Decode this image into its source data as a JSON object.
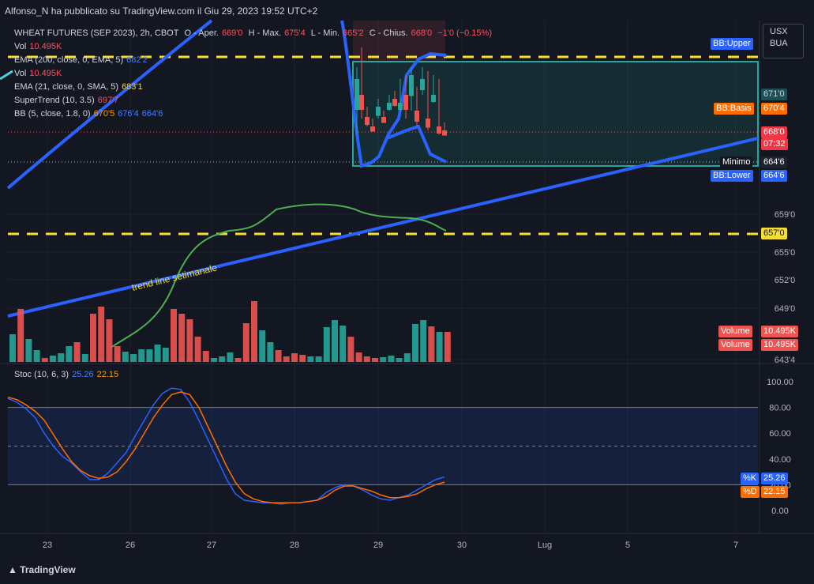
{
  "header": {
    "publisher_line": "Alfonso_N ha pubblicato su TradingView.com il Giu 29, 2023 19:52 UTC+2"
  },
  "legend": {
    "main": {
      "symbol": "WHEAT FUTURES (SEP 2023), 2h, CBOT",
      "o_label": "O - Aper.",
      "o": "669'0",
      "h_label": "H - Max.",
      "h": "675'4",
      "l_label": "L - Min.",
      "l": "665'2",
      "c_label": "C - Chius.",
      "c": "668'0",
      "chg": "−1'0 (−0.15%)"
    },
    "vol1": {
      "label": "Vol",
      "value": "10.495K"
    },
    "ema200": {
      "label": "EMA (200, close, 0, EMA, 5)",
      "value": "682'2"
    },
    "vol2": {
      "label": "Vol",
      "value": "10.495K"
    },
    "ema21": {
      "label": "EMA (21, close, 0, SMA, 5)",
      "value": "683'1"
    },
    "supertrend": {
      "label": "SuperTrend (10, 3.5)",
      "value": "697'7"
    },
    "bb": {
      "label": "BB (5, close, 1.8, 0)",
      "basis": "670'5",
      "upper": "676'4",
      "lower": "664'6"
    }
  },
  "currency": {
    "line1": "USX",
    "line2": "BUA"
  },
  "price_axis": {
    "ticks": [
      "659'0",
      "655'0",
      "652'0",
      "649'0",
      "643'4"
    ],
    "tags": {
      "bb_upper_label": "BB:Upper",
      "bb_basis_label": "BB:Basis",
      "bb_basis": "670'4",
      "val_671": "671'0",
      "last": "668'0",
      "countdown": "07:32",
      "minimo_label": "Minimo",
      "minimo": "664'6",
      "bb_lower_label": "BB:Lower",
      "bb_lower": "664'6",
      "level_657": "657'0",
      "vol_label": "Volume",
      "vol_value": "10.495K"
    }
  },
  "annotation": {
    "trendline_text": "trend line setimanale"
  },
  "stoch": {
    "legend_label": "Stoc (10, 6, 3)",
    "k_value": "25.26",
    "d_value": "22.15",
    "axis_ticks": [
      "100.00",
      "80.00",
      "60.00",
      "40.00",
      "20.00",
      "0.00"
    ],
    "k_tag": "%K",
    "d_tag": "%D"
  },
  "time_axis": [
    "23",
    "26",
    "27",
    "28",
    "29",
    "30",
    "Lug",
    "5",
    "7"
  ],
  "footer": {
    "logo": "TradingView"
  },
  "colors": {
    "bg": "#131722",
    "up": "#26a69a",
    "down": "#ef5350",
    "trend": "#2962ff",
    "level": "#f5dd32",
    "ema": "#4caf50",
    "k": "#2962ff",
    "d": "#ff6d00"
  },
  "chart_data": [
    {
      "type": "line",
      "x_labels": [
        "23",
        "26",
        "27",
        "28",
        "29",
        "30",
        "Lug",
        "5",
        "7"
      ],
      "price_levels": [
        657.0,
        668.0,
        664.75,
        670.5,
        676.5
      ],
      "volume_bars": {
        "colors": [
          "up",
          "down",
          "up",
          "up",
          "down",
          "up",
          "up",
          "up",
          "down",
          "up",
          "down",
          "down",
          "down",
          "down",
          "up",
          "up",
          "up",
          "up",
          "up",
          "up",
          "down",
          "down",
          "down",
          "down",
          "down",
          "up",
          "up",
          "up",
          "down",
          "down",
          "down",
          "up",
          "up",
          "down",
          "down",
          "down",
          "down",
          "up",
          "up",
          "up",
          "up",
          "up",
          "down",
          "down",
          "down",
          "down",
          "up",
          "up",
          "up",
          "up",
          "up",
          "up",
          "down",
          "up",
          "down"
        ],
        "values": [
          3.5,
          6.7,
          2.9,
          1.5,
          0.5,
          0.8,
          1.1,
          2.0,
          2.5,
          1.0,
          6.1,
          7.0,
          5.4,
          2.0,
          1.3,
          1.0,
          1.6,
          1.6,
          2.2,
          1.8,
          6.7,
          6.1,
          5.4,
          3.2,
          1.4,
          0.5,
          0.7,
          1.2,
          0.5,
          4.9,
          7.7,
          4.0,
          2.5,
          1.5,
          0.7,
          1.1,
          0.9,
          0.7,
          0.7,
          4.4,
          5.3,
          4.6,
          3.2,
          1.2,
          0.7,
          0.5,
          0.6,
          0.8,
          0.5,
          1.1,
          4.8,
          5.3,
          4.5,
          3.8,
          3.8
        ]
      },
      "bb_lower_line": [
        664.75,
        664.75
      ]
    },
    {
      "type": "line",
      "title": "Stoc (10, 6, 3)",
      "ylim": [
        0,
        100
      ],
      "series": [
        {
          "name": "%K",
          "values": [
            87,
            84,
            79,
            72,
            60,
            50,
            42,
            37,
            30,
            24,
            24,
            29,
            37,
            45,
            58,
            70,
            82,
            91,
            95,
            94,
            84,
            70,
            55,
            40,
            25,
            13,
            8,
            7,
            6,
            6,
            5,
            6,
            6,
            7,
            8,
            14,
            18,
            20,
            19,
            16,
            12,
            9,
            8,
            10,
            12,
            16,
            20,
            24,
            26
          ]
        },
        {
          "name": "%D",
          "values": [
            88,
            86,
            82,
            77,
            70,
            59,
            48,
            38,
            31,
            27,
            25,
            26,
            30,
            38,
            48,
            60,
            72,
            82,
            90,
            92,
            90,
            80,
            65,
            50,
            35,
            22,
            13,
            9,
            7,
            6,
            6,
            6,
            6,
            7,
            8,
            11,
            16,
            19,
            19,
            17,
            15,
            12,
            10,
            10,
            11,
            13,
            17,
            20,
            22
          ]
        }
      ],
      "reference_lines": [
        80,
        50,
        20
      ]
    }
  ]
}
